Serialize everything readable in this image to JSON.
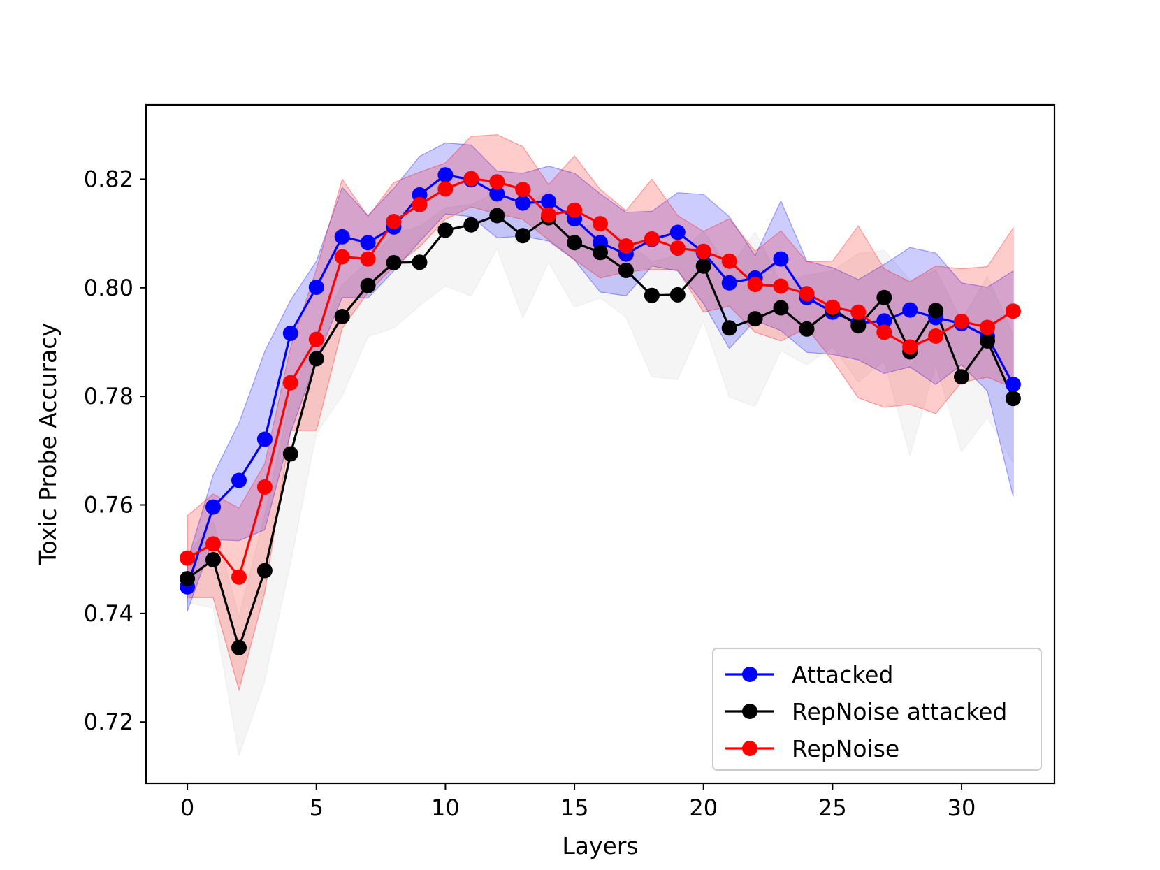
{
  "chart_data": {
    "type": "line",
    "xlabel": "Layers",
    "ylabel": "Toxic Probe Accuracy",
    "xlim": [
      -1.6,
      33.6
    ],
    "ylim": [
      0.7087,
      0.8337
    ],
    "xticks": [
      0,
      5,
      10,
      15,
      20,
      25,
      30
    ],
    "xtick_labels": [
      "0",
      "5",
      "10",
      "15",
      "20",
      "25",
      "30"
    ],
    "yticks": [
      0.72,
      0.74,
      0.76,
      0.78,
      0.8,
      0.82
    ],
    "ytick_labels": [
      "0.72",
      "0.74",
      "0.76",
      "0.78",
      "0.80",
      "0.82"
    ],
    "grid": false,
    "legend_position": "lower-right",
    "x": [
      0,
      1,
      2,
      3,
      4,
      5,
      6,
      7,
      8,
      9,
      10,
      11,
      12,
      13,
      14,
      15,
      16,
      17,
      18,
      19,
      20,
      21,
      22,
      23,
      24,
      25,
      26,
      27,
      28,
      29,
      30,
      31,
      32
    ],
    "series": [
      {
        "name": "Attacked",
        "color": "#0000ff",
        "values": [
          0.7449,
          0.7596,
          0.7645,
          0.7721,
          0.7916,
          0.8001,
          0.8094,
          0.8083,
          0.8112,
          0.8171,
          0.8208,
          0.8199,
          0.8173,
          0.8156,
          0.8159,
          0.8127,
          0.8083,
          0.8062,
          0.8089,
          0.8102,
          0.8065,
          0.8009,
          0.8018,
          0.8053,
          0.7982,
          0.7955,
          0.7935,
          0.7939,
          0.7959,
          0.7945,
          0.7934,
          0.791,
          0.7822
        ],
        "band_low": [
          0.7404,
          0.7536,
          0.7534,
          0.7554,
          0.7733,
          0.7867,
          0.7982,
          0.7981,
          0.8031,
          0.8085,
          0.8136,
          0.8131,
          0.8092,
          0.8095,
          0.8086,
          0.8051,
          0.7992,
          0.7985,
          0.804,
          0.8031,
          0.7971,
          0.7888,
          0.794,
          0.7921,
          0.7881,
          0.7877,
          0.7867,
          0.7842,
          0.7854,
          0.7822,
          0.7858,
          0.781,
          0.7615
        ],
        "band_high": [
          0.7496,
          0.7655,
          0.7751,
          0.7883,
          0.7977,
          0.8049,
          0.8185,
          0.8133,
          0.8183,
          0.8242,
          0.8267,
          0.8263,
          0.8215,
          0.8211,
          0.8224,
          0.8211,
          0.8173,
          0.8139,
          0.8141,
          0.8175,
          0.8172,
          0.8131,
          0.8059,
          0.816,
          0.8049,
          0.8037,
          0.8015,
          0.8043,
          0.8074,
          0.8064,
          0.8009,
          0.8001,
          0.8031
        ]
      },
      {
        "name": "RepNoise attacked",
        "color": "#000000",
        "values": [
          0.7464,
          0.7499,
          0.7337,
          0.7479,
          0.7694,
          0.7869,
          0.7947,
          0.8004,
          0.8046,
          0.8047,
          0.8106,
          0.8116,
          0.8133,
          0.8096,
          0.8129,
          0.8083,
          0.8065,
          0.8032,
          0.7986,
          0.7987,
          0.804,
          0.7926,
          0.7943,
          0.7963,
          0.7924,
          0.7961,
          0.793,
          0.7982,
          0.7882,
          0.7958,
          0.7836,
          0.7902,
          0.7796
        ],
        "band_low": [
          0.742,
          0.741,
          0.7138,
          0.7276,
          0.7493,
          0.7732,
          0.7801,
          0.791,
          0.7926,
          0.7967,
          0.8003,
          0.7985,
          0.8072,
          0.7944,
          0.8047,
          0.7964,
          0.7981,
          0.7946,
          0.7836,
          0.7831,
          0.7939,
          0.7799,
          0.7781,
          0.7884,
          0.7858,
          0.7891,
          0.7827,
          0.7865,
          0.7691,
          0.786,
          0.7698,
          0.7761,
          0.7678
        ],
        "band_high": [
          0.7508,
          0.757,
          0.7394,
          0.7582,
          0.7797,
          0.7908,
          0.8006,
          0.8048,
          0.8099,
          0.8113,
          0.8147,
          0.8153,
          0.8174,
          0.8151,
          0.8178,
          0.8113,
          0.8116,
          0.8086,
          0.8048,
          0.806,
          0.8105,
          0.8033,
          0.8103,
          0.8009,
          0.8023,
          0.8031,
          0.8063,
          0.8069,
          0.8014,
          0.8032,
          0.794,
          0.8021,
          0.7914
        ]
      },
      {
        "name": "RepNoise",
        "color": "#ff0000",
        "values": [
          0.7502,
          0.7528,
          0.7467,
          0.7633,
          0.7825,
          0.7905,
          0.8057,
          0.8053,
          0.8122,
          0.8153,
          0.8182,
          0.8201,
          0.8195,
          0.8181,
          0.8134,
          0.8143,
          0.8118,
          0.8077,
          0.809,
          0.8073,
          0.8067,
          0.8049,
          0.8006,
          0.8003,
          0.7989,
          0.7964,
          0.7955,
          0.7918,
          0.7891,
          0.7911,
          0.7938,
          0.7927,
          0.7957
        ],
        "band_low": [
          0.7429,
          0.7429,
          0.7259,
          0.7439,
          0.7737,
          0.7737,
          0.7925,
          0.7991,
          0.8039,
          0.8075,
          0.8126,
          0.8149,
          0.8136,
          0.8126,
          0.8088,
          0.8052,
          0.8018,
          0.8029,
          0.8034,
          0.8033,
          0.7955,
          0.7966,
          0.7918,
          0.7902,
          0.7926,
          0.7866,
          0.7797,
          0.778,
          0.7785,
          0.7768,
          0.7826,
          0.7835,
          0.7816
        ],
        "band_high": [
          0.758,
          0.762,
          0.7594,
          0.7676,
          0.789,
          0.8034,
          0.82,
          0.8131,
          0.8194,
          0.8213,
          0.823,
          0.8279,
          0.8282,
          0.826,
          0.819,
          0.8243,
          0.8181,
          0.8142,
          0.82,
          0.8133,
          0.8104,
          0.8127,
          0.8067,
          0.8105,
          0.8048,
          0.8049,
          0.8114,
          0.8035,
          0.8011,
          0.804,
          0.8035,
          0.8039,
          0.811
        ]
      }
    ],
    "legend_order": [
      "Attacked",
      "RepNoise attacked",
      "RepNoise"
    ]
  }
}
